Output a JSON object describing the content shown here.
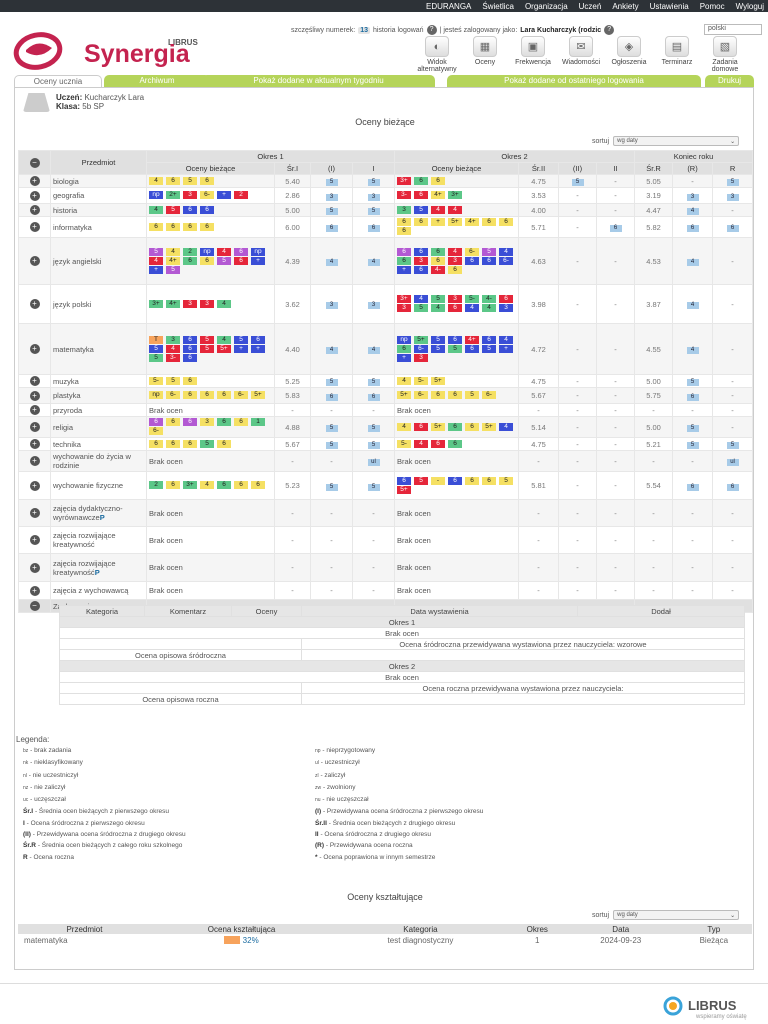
{
  "topnav": [
    "EDURANGA",
    "Świetlica",
    "Organizacja",
    "Uczeń",
    "Ankiety",
    "Ustawienia",
    "Pomoc",
    "Wyloguj"
  ],
  "brand": {
    "top": "LIBRUS",
    "name": "Synergia"
  },
  "userbar": {
    "lucky_label": "szczęśliwy numerek:",
    "lucky_number": "13",
    "history": "historia logowań",
    "logged_as": "| jesteś zalogowany jako:",
    "user": "Lara Kucharczyk (rodzic",
    "help": "?",
    "lang": "polski"
  },
  "tools": [
    {
      "label": "Widok alternatywny",
      "icon": "half-circle-icon"
    },
    {
      "label": "Oceny",
      "icon": "grades-icon"
    },
    {
      "label": "Frekwencja",
      "icon": "attendance-icon"
    },
    {
      "label": "Wiadomości",
      "icon": "envelope-icon"
    },
    {
      "label": "Ogłoszenia",
      "icon": "megaphone-icon"
    },
    {
      "label": "Terminarz",
      "icon": "calendar-icon"
    },
    {
      "label": "Zadania domowe",
      "icon": "homework-icon"
    }
  ],
  "tabs": [
    {
      "label": "Oceny ucznia"
    },
    {
      "label": "Archiwum"
    },
    {
      "label": "Pokaż dodane w aktualnym tygodniu"
    },
    {
      "label": "Pokaż dodane od ostatniego logowania"
    },
    {
      "label": "Drukuj"
    }
  ],
  "student": {
    "label1": "Uczeń:",
    "name": "Kucharczyk Lara",
    "label2": "Klasa:",
    "class": "5b SP"
  },
  "section_title": "Oceny bieżące",
  "sort": {
    "label": "sortuj",
    "value": "wg daty"
  },
  "table_head": {
    "subject": "Przedmiot",
    "term1": "Okres 1",
    "term2": "Okres 2",
    "year": "Koniec roku",
    "current": "Oceny bieżące",
    "avg1": "Śr.I",
    "pred1": "(I)",
    "final1": "I",
    "avg2": "Śr.II",
    "pred2": "(II)",
    "final2": "II",
    "avgR": "Śr.R",
    "predR": "(R)",
    "finalR": "R"
  },
  "subjects": [
    {
      "name": "biologia",
      "g1": [
        [
          "4",
          "y"
        ],
        [
          "6",
          "y"
        ],
        [
          "5",
          "y"
        ],
        [
          "6",
          "y"
        ]
      ],
      "s1": "5.40",
      "p1": "5",
      "f1": "5",
      "g2": [
        [
          "3+",
          "r"
        ],
        [
          "6",
          "g"
        ],
        [
          "6",
          "y"
        ]
      ],
      "s2": "4.75",
      "p2": "5",
      "f2": "-",
      "sR": "5.05",
      "pR": "-",
      "fR": "5"
    },
    {
      "name": "geografia",
      "g1": [
        [
          "np",
          "b"
        ],
        [
          "2+",
          "g"
        ],
        [
          "3",
          "r"
        ],
        [
          "6-",
          "y"
        ],
        [
          "+",
          "b"
        ],
        [
          "2",
          "r"
        ]
      ],
      "s1": "2.86",
      "p1": "3",
      "f1": "3",
      "g2": [
        [
          "3-",
          "r"
        ],
        [
          "6",
          "r"
        ],
        [
          "4+",
          "y"
        ],
        [
          "3+",
          "g"
        ]
      ],
      "s2": "3.53",
      "p2": "-",
      "f2": "-",
      "sR": "3.19",
      "pR": "3",
      "fR": "3"
    },
    {
      "name": "historia",
      "g1": [
        [
          "4",
          "g"
        ],
        [
          "5",
          "r"
        ],
        [
          "6",
          "b"
        ],
        [
          "6",
          "b"
        ]
      ],
      "s1": "5.00",
      "p1": "5",
      "f1": "5",
      "g2": [
        [
          "3",
          "g"
        ],
        [
          "5",
          "b"
        ],
        [
          "4",
          "r"
        ],
        [
          "4",
          "r"
        ]
      ],
      "s2": "4.00",
      "p2": "-",
      "f2": "-",
      "sR": "4.47",
      "pR": "4",
      "fR": "-"
    },
    {
      "name": "informatyka",
      "g1": [
        [
          "6",
          "y"
        ],
        [
          "6",
          "y"
        ],
        [
          "6",
          "y"
        ],
        [
          "6",
          "y"
        ]
      ],
      "s1": "6.00",
      "p1": "6",
      "f1": "6",
      "g2": [
        [
          "6",
          "y"
        ],
        [
          "6",
          "y"
        ],
        [
          "+",
          "y"
        ],
        [
          "5+",
          "y"
        ],
        [
          "4+",
          "y"
        ],
        [
          "6",
          "y"
        ],
        [
          "6",
          "y"
        ],
        [
          "6",
          "y"
        ]
      ],
      "s2": "5.71",
      "p2": "-",
      "f2": "6",
      "sR": "5.82",
      "pR": "6",
      "fR": "6"
    },
    {
      "name": "język angielski",
      "g1": [
        [
          "5",
          "p"
        ],
        [
          "4",
          "y"
        ],
        [
          "2",
          "g"
        ],
        [
          "np",
          "b"
        ],
        [
          "4",
          "r"
        ],
        [
          "6",
          "p"
        ],
        [
          "np",
          "b"
        ],
        [
          "4",
          "r"
        ],
        [
          "4+",
          "y"
        ],
        [
          "6",
          "g"
        ],
        [
          "6",
          "y"
        ],
        [
          "5",
          "p"
        ],
        [
          "6",
          "r"
        ],
        [
          "+",
          "b"
        ],
        [
          "+",
          "b"
        ],
        [
          "5",
          "p"
        ]
      ],
      "s1": "4.39",
      "p1": "4",
      "f1": "4",
      "g2": [
        [
          "6",
          "p"
        ],
        [
          "6",
          "b"
        ],
        [
          "6",
          "g"
        ],
        [
          "4",
          "r"
        ],
        [
          "6-",
          "y"
        ],
        [
          "5",
          "p"
        ],
        [
          "4",
          "b"
        ],
        [
          "6",
          "g"
        ],
        [
          "3",
          "r"
        ],
        [
          "6",
          "y"
        ],
        [
          "3",
          "r"
        ],
        [
          "6",
          "b"
        ],
        [
          "6",
          "b"
        ],
        [
          "6-",
          "b"
        ],
        [
          "+",
          "b"
        ],
        [
          "6",
          "b"
        ],
        [
          "4-",
          "r"
        ],
        [
          "6",
          "y"
        ]
      ],
      "s2": "4.63",
      "p2": "-",
      "f2": "-",
      "sR": "4.53",
      "pR": "4",
      "fR": "-"
    },
    {
      "name": "język polski",
      "g1": [
        [
          "3+",
          "g"
        ],
        [
          "4+",
          "g"
        ],
        [
          "3",
          "r"
        ],
        [
          "3",
          "r"
        ],
        [
          "4",
          "g"
        ]
      ],
      "s1": "3.62",
      "p1": "3",
      "f1": "3",
      "g2": [
        [
          "3+",
          "r"
        ],
        [
          "4",
          "b"
        ],
        [
          "5",
          "g"
        ],
        [
          "3",
          "r"
        ],
        [
          "5-",
          "g"
        ],
        [
          "4-",
          "g"
        ],
        [
          "6",
          "r"
        ],
        [
          "3",
          "r"
        ],
        [
          "5",
          "g"
        ],
        [
          "4",
          "g"
        ],
        [
          "6",
          "r"
        ],
        [
          "4",
          "b"
        ],
        [
          "4",
          "g"
        ],
        [
          "3",
          "b"
        ]
      ],
      "s2": "3.98",
      "p2": "-",
      "f2": "-",
      "sR": "3.87",
      "pR": "4",
      "fR": "-"
    },
    {
      "name": "matematyka",
      "g1": [
        [
          "T",
          "o"
        ],
        [
          "3",
          "g"
        ],
        [
          "6",
          "b"
        ],
        [
          "5",
          "r"
        ],
        [
          "4",
          "g"
        ],
        [
          "5",
          "b"
        ],
        [
          "6",
          "b"
        ],
        [
          "5",
          "b"
        ],
        [
          "4",
          "r"
        ],
        [
          "6",
          "b"
        ],
        [
          "5",
          "r"
        ],
        [
          "5+",
          "r"
        ],
        [
          "+",
          "b"
        ],
        [
          "+",
          "b"
        ],
        [
          "5",
          "g"
        ],
        [
          "3-",
          "r"
        ],
        [
          "6",
          "b"
        ]
      ],
      "s1": "4.40",
      "p1": "4",
      "f1": "4",
      "g2": [
        [
          "np",
          "b"
        ],
        [
          "5+",
          "g"
        ],
        [
          "5",
          "b"
        ],
        [
          "6",
          "b"
        ],
        [
          "4+",
          "r"
        ],
        [
          "6",
          "b"
        ],
        [
          "4",
          "b"
        ],
        [
          "6",
          "g"
        ],
        [
          "6-",
          "b"
        ],
        [
          "5",
          "b"
        ],
        [
          "5",
          "g"
        ],
        [
          "6",
          "b"
        ],
        [
          "5",
          "b"
        ],
        [
          "+",
          "b"
        ],
        [
          "+",
          "b"
        ],
        [
          "3",
          "r"
        ]
      ],
      "s2": "4.72",
      "p2": "-",
      "f2": "-",
      "sR": "4.55",
      "pR": "4",
      "fR": "-"
    },
    {
      "name": "muzyka",
      "g1": [
        [
          "5-",
          "y"
        ],
        [
          "5",
          "y"
        ],
        [
          "6",
          "y"
        ]
      ],
      "s1": "5.25",
      "p1": "5",
      "f1": "5",
      "g2": [
        [
          "4",
          "y"
        ],
        [
          "5-",
          "y"
        ],
        [
          "5+",
          "y"
        ]
      ],
      "s2": "4.75",
      "p2": "-",
      "f2": "-",
      "sR": "5.00",
      "pR": "5",
      "fR": "-"
    },
    {
      "name": "plastyka",
      "g1": [
        [
          "np",
          "y"
        ],
        [
          "6-",
          "y"
        ],
        [
          "6",
          "y"
        ],
        [
          "6",
          "y"
        ],
        [
          "6",
          "y"
        ],
        [
          "6-",
          "y"
        ],
        [
          "5+",
          "y"
        ]
      ],
      "s1": "5.83",
      "p1": "6",
      "f1": "6",
      "g2": [
        [
          "5+",
          "y"
        ],
        [
          "6-",
          "y"
        ],
        [
          "6",
          "y"
        ],
        [
          "6",
          "y"
        ],
        [
          "5",
          "y"
        ],
        [
          "6-",
          "y"
        ]
      ],
      "s2": "5.67",
      "p2": "-",
      "f2": "-",
      "sR": "5.75",
      "pR": "6",
      "fR": "-"
    },
    {
      "name": "przyroda",
      "g1text": "Brak ocen",
      "g2text": "Brak ocen"
    },
    {
      "name": "religia",
      "g1": [
        [
          "6",
          "p"
        ],
        [
          "6",
          "y"
        ],
        [
          "6",
          "p"
        ],
        [
          "3",
          "y"
        ],
        [
          "6",
          "g"
        ],
        [
          "6",
          "y"
        ],
        [
          "1",
          "g"
        ],
        [
          "6-",
          "y"
        ]
      ],
      "s1": "4.88",
      "p1": "5",
      "f1": "5",
      "g2": [
        [
          "4",
          "y"
        ],
        [
          "6",
          "r"
        ],
        [
          "5+",
          "y"
        ],
        [
          "6",
          "g"
        ],
        [
          "6",
          "y"
        ],
        [
          "5+",
          "y"
        ],
        [
          "4",
          "b"
        ]
      ],
      "s2": "5.14",
      "p2": "-",
      "f2": "-",
      "sR": "5.00",
      "pR": "5",
      "fR": "-"
    },
    {
      "name": "technika",
      "g1": [
        [
          "6",
          "y"
        ],
        [
          "6",
          "y"
        ],
        [
          "6",
          "y"
        ],
        [
          "5",
          "g"
        ],
        [
          "6",
          "y"
        ]
      ],
      "s1": "5.67",
      "p1": "5",
      "f1": "5",
      "g2": [
        [
          "5-",
          "y"
        ],
        [
          "4",
          "r"
        ],
        [
          "6",
          "r"
        ],
        [
          "6",
          "g"
        ]
      ],
      "s2": "4.75",
      "p2": "-",
      "f2": "-",
      "sR": "5.21",
      "pR": "5",
      "fR": "5"
    },
    {
      "name": "wychowanie do życia w rodzinie",
      "g1text": "Brak ocen",
      "f1": "ul",
      "g2text": "Brak ocen",
      "fR": "ul"
    },
    {
      "name": "wychowanie fizyczne",
      "g1": [
        [
          "2",
          "g"
        ],
        [
          "6",
          "y"
        ],
        [
          "3+",
          "g"
        ],
        [
          "4",
          "y"
        ],
        [
          "6",
          "g"
        ],
        [
          "6",
          "y"
        ],
        [
          "6",
          "y"
        ]
      ],
      "s1": "5.23",
      "p1": "5",
      "f1": "5",
      "g2": [
        [
          "6",
          "b"
        ],
        [
          "5",
          "r"
        ],
        [
          "-",
          "y"
        ],
        [
          "6",
          "b"
        ],
        [
          "6",
          "y"
        ],
        [
          "6",
          "y"
        ],
        [
          "5",
          "y"
        ],
        [
          "5+",
          "r"
        ]
      ],
      "s2": "5.81",
      "p2": "-",
      "f2": "-",
      "sR": "5.54",
      "pR": "6",
      "fR": "6"
    },
    {
      "name": "zajęcia dydaktyczno-wyrównawcze",
      "flag": "P",
      "g1text": "Brak ocen",
      "g2text": "Brak ocen"
    },
    {
      "name": "zajęcia rozwijające kreatywność",
      "g1text": "Brak ocen",
      "g2text": "Brak ocen"
    },
    {
      "name": "zajęcia rozwijające kreatywność",
      "flag": "P",
      "g1text": "Brak ocen",
      "g2text": "Brak ocen"
    },
    {
      "name": "zajęcia z wychowawcą",
      "g1text": "Brak ocen",
      "g2text": "Brak ocen"
    }
  ],
  "zachowanie": {
    "label": "Zachowanie",
    "value": "wzorowe",
    "r": "-"
  },
  "behavior_table": {
    "cols": [
      "Kategoria",
      "Komentarz",
      "Oceny",
      "Data wystawienia",
      "Dodał"
    ],
    "t1": "Okres 1",
    "t1_none": "Brak ocen",
    "t1_pred": "Ocena śródroczna przewidywana wystawiona przez nauczyciela: wzorowe",
    "t1_desc": "Ocena opisowa śródroczna",
    "t2": "Okres 2",
    "t2_none": "Brak ocen",
    "t2_pred": "Ocena roczna przewidywana wystawiona przez nauczyciela:",
    "t2_desc": "Ocena opisowa roczna"
  },
  "legend": {
    "title": "Legenda:",
    "left": [
      {
        "k": "bz",
        "t": "- brak zadania"
      },
      {
        "k": "nk",
        "t": "- nieklasyfikowany"
      },
      {
        "k": "nl",
        "t": "- nie uczestniczył"
      },
      {
        "k": "nz",
        "t": "- nie zaliczył"
      },
      {
        "k": "uc",
        "t": "- uczęszczał"
      },
      {
        "k": "Śr.I",
        "t": "- Średnia ocen bieżących z pierwszego okresu",
        "bold": true
      },
      {
        "k": "I",
        "t": "- Ocena śródroczna z pierwszego okresu",
        "bold": true
      },
      {
        "k": "(II)",
        "t": "- Przewidywana ocena śródroczna z drugiego okresu",
        "bold": true
      },
      {
        "k": "Śr.R",
        "t": "- Średnia ocen bieżących z całego roku szkolnego",
        "bold": true
      },
      {
        "k": "R",
        "t": "- Ocena roczna",
        "bold": true
      }
    ],
    "right": [
      {
        "k": "np",
        "t": "- nieprzygotowany"
      },
      {
        "k": "ul",
        "t": "- uczestniczył"
      },
      {
        "k": "zl",
        "t": "- zaliczył"
      },
      {
        "k": "zw",
        "t": "- zwolniony"
      },
      {
        "k": "nu",
        "t": "- nie uczęszczał"
      },
      {
        "k": "(I)",
        "t": "- Przewidywana ocena śródroczna z pierwszego okresu",
        "bold": true
      },
      {
        "k": "Śr.II",
        "t": "- Średnia ocen bieżących z drugiego okresu",
        "bold": true
      },
      {
        "k": "II",
        "t": "- Ocena śródroczna z drugiego okresu",
        "bold": true
      },
      {
        "k": "(R)",
        "t": "- Przewidywana ocena roczna",
        "bold": true
      },
      {
        "k": "*",
        "t": "- Ocena poprawiona w innym semestrze",
        "bold": true
      }
    ]
  },
  "formative": {
    "title": "Oceny kształtujące",
    "sort": {
      "label": "sortuj",
      "value": "wg daty"
    },
    "cols": [
      "Przedmiot",
      "Ocena kształtująca",
      "Kategoria",
      "Okres",
      "Data",
      "Typ"
    ],
    "rows": [
      {
        "subject": "matematyka",
        "score": "32%",
        "score_fraction": 0.32,
        "category": "test diagnostyczny",
        "term": "1",
        "date": "2024-09-23",
        "type": "Bieżąca"
      }
    ]
  },
  "footer": {
    "brand": "LIBRUS",
    "tagline": "wspieramy oświatę"
  },
  "colors": {
    "nav": "#2d3237",
    "tab_green": "#b5d45a",
    "brand_red": "#c4234f",
    "grade_yellow": "#f5e063",
    "grade_red": "#e5263a",
    "grade_blue": "#3a4ed6",
    "grade_green": "#5cc788",
    "grade_purple": "#b359d3",
    "grade_orange": "#f7a35c",
    "prediction_blue": "#a7cbe8"
  }
}
